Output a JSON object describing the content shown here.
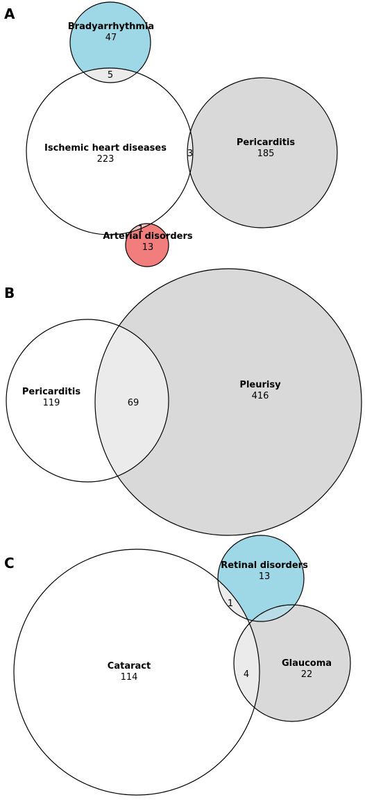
{
  "colors": {
    "white": "#ffffff",
    "grey": "#d9d9d9",
    "overlap": "#ebebeb",
    "blue": "#9ed8e6",
    "red": "#f27d7d"
  },
  "panels": [
    {
      "letter": "A",
      "sets": [
        {
          "name": "Bradyarrhythmia",
          "count": "47"
        },
        {
          "name": "Ischemic heart diseases",
          "count": "223"
        },
        {
          "name": "Pericarditis",
          "count": "185"
        },
        {
          "name": "Arterial disorders",
          "count": "13"
        }
      ],
      "overlaps": [
        "5",
        "3",
        "1"
      ]
    },
    {
      "letter": "B",
      "sets": [
        {
          "name": "Pericarditis",
          "count": "119"
        },
        {
          "name": "Pleurisy",
          "count": "416"
        }
      ],
      "overlaps": [
        "69"
      ]
    },
    {
      "letter": "C",
      "sets": [
        {
          "name": "Retinal disorders",
          "count": "13"
        },
        {
          "name": "Cataract",
          "count": "114"
        },
        {
          "name": "Glaucoma",
          "count": "22"
        }
      ],
      "overlaps": [
        "1",
        "4"
      ]
    }
  ]
}
